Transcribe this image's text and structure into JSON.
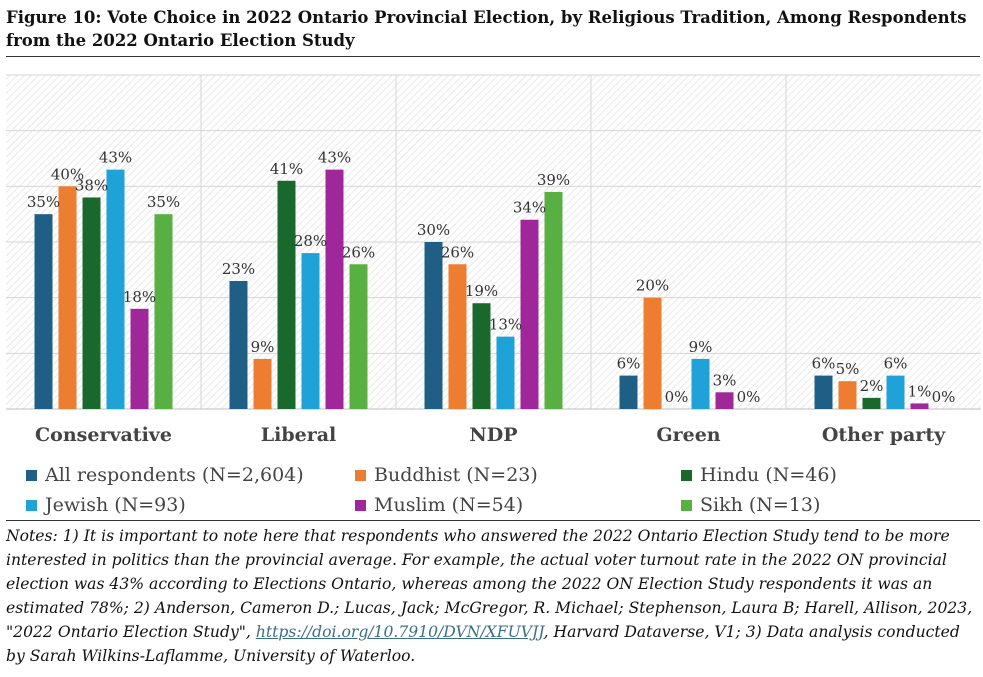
{
  "title": "Figure 10: Vote Choice in 2022 Ontario Provincial Election, by Religious Tradition, Among Respondents from the 2022 Ontario Election Study",
  "chart_data": {
    "type": "bar",
    "title": "Figure 10: Vote Choice in 2022 Ontario Provincial Election, by Religious Tradition, Among Respondents from the 2022 Ontario Election Study",
    "categories": [
      "Conservative",
      "Liberal",
      "NDP",
      "Green",
      "Other party"
    ],
    "ylim": [
      0,
      60
    ],
    "grid": true,
    "legend_position": "bottom",
    "value_suffix": "%",
    "series": [
      {
        "name": "All respondents (N=2,604)",
        "color": "#1f5f86",
        "values": [
          35,
          23,
          30,
          6,
          6
        ]
      },
      {
        "name": "Buddhist (N=23)",
        "color": "#ed7d31",
        "values": [
          40,
          9,
          26,
          20,
          5
        ]
      },
      {
        "name": "Hindu (N=46)",
        "color": "#19692c",
        "values": [
          38,
          41,
          19,
          0,
          2
        ]
      },
      {
        "name": "Jewish (N=93)",
        "color": "#1ea2d8",
        "values": [
          43,
          28,
          13,
          9,
          6
        ]
      },
      {
        "name": "Muslim (N=54)",
        "color": "#a0279a",
        "values": [
          18,
          43,
          34,
          3,
          1
        ]
      },
      {
        "name": "Sikh (N=13)",
        "color": "#59b042",
        "values": [
          35,
          26,
          39,
          0,
          0
        ]
      }
    ]
  },
  "notes": {
    "before_link": "Notes: 1) It is important to note here that respondents who answered the 2022 Ontario Election Study tend to be more interested in politics than the provincial average. For example, the actual voter turnout rate in the 2022 ON provincial election was 43% according to Elections Ontario, whereas among the 2022 ON Election Study respondents it was an estimated 78%; 2) Anderson, Cameron D.; Lucas, Jack; McGregor, R. Michael; Stephenson, Laura B; Harell, Allison, 2023, \"2022 Ontario Election Study\", ",
    "link": "https://doi.org/10.7910/DVN/XFUVJJ",
    "after_link": ", Harvard Dataverse, V1; 3) Data analysis conducted by Sarah Wilkins-Laflamme, University of Waterloo."
  }
}
